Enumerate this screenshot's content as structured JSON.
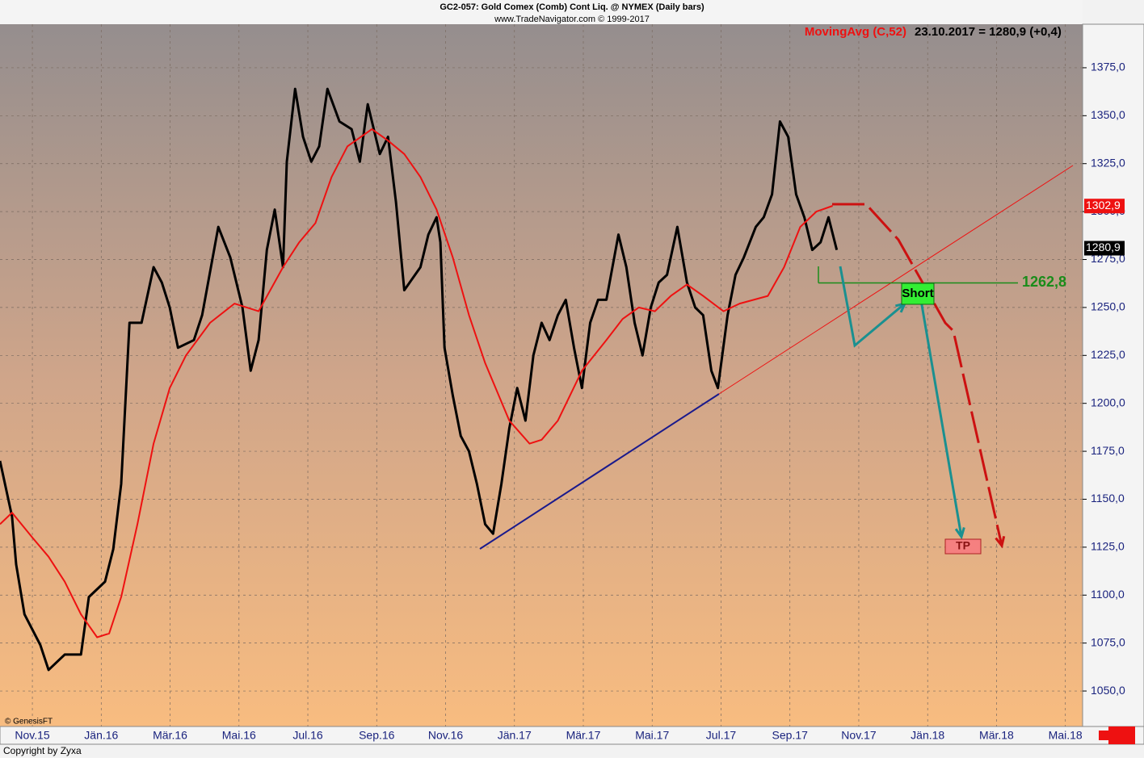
{
  "chart_data": {
    "type": "line",
    "title": "GC2-057:  Gold Comex (Comb) Cont Liq. @ NYMEX  (Daily bars)",
    "subtitle": "www.TradeNavigator.com © 1999-2017",
    "xlim": [
      -0.94,
      30.5
    ],
    "xticks": [
      {
        "value": 0,
        "label": "Nov.15"
      },
      {
        "value": 2,
        "label": "Jän.16"
      },
      {
        "value": 4,
        "label": "Mär.16"
      },
      {
        "value": 6,
        "label": "Mai.16"
      },
      {
        "value": 8,
        "label": "Jul.16"
      },
      {
        "value": 10,
        "label": "Sep.16"
      },
      {
        "value": 12,
        "label": "Nov.16"
      },
      {
        "value": 14,
        "label": "Jän.17"
      },
      {
        "value": 16,
        "label": "Mär.17"
      },
      {
        "value": 18,
        "label": "Mai.17"
      },
      {
        "value": 20,
        "label": "Jul.17"
      },
      {
        "value": 22,
        "label": "Sep.17"
      },
      {
        "value": 24,
        "label": "Nov.17"
      },
      {
        "value": 26,
        "label": "Jän.18"
      },
      {
        "value": 28,
        "label": "Mär.18"
      },
      {
        "value": 30,
        "label": "Mai.18"
      }
    ],
    "ylim": [
      1031.5,
      1397.7
    ],
    "yticks": [
      {
        "value": 1050,
        "label": "1050,0"
      },
      {
        "value": 1075,
        "label": "1075,0"
      },
      {
        "value": 1100,
        "label": "1100,0"
      },
      {
        "value": 1125,
        "label": "1125,0"
      },
      {
        "value": 1150,
        "label": "1150,0"
      },
      {
        "value": 1175,
        "label": "1175,0"
      },
      {
        "value": 1200,
        "label": "1200,0"
      },
      {
        "value": 1225,
        "label": "1225,0"
      },
      {
        "value": 1250,
        "label": "1250,0"
      },
      {
        "value": 1275,
        "label": "1275,0"
      },
      {
        "value": 1300,
        "label": "1300,0"
      },
      {
        "value": 1325,
        "label": "1325,0"
      },
      {
        "value": 1350,
        "label": "1350,0"
      },
      {
        "value": 1375,
        "label": "1375,0"
      }
    ],
    "series": [
      {
        "color": "#000000",
        "x": [
          -0.94,
          -0.59,
          -0.47,
          -0.23,
          0.23,
          0.47,
          0.94,
          1.41,
          1.64,
          2.11,
          2.35,
          2.58,
          2.82,
          3.17,
          3.52,
          3.76,
          3.99,
          4.23,
          4.69,
          4.93,
          5.4,
          5.75,
          6.1,
          6.34,
          6.57,
          6.81,
          7.04,
          7.28,
          7.39,
          7.63,
          7.86,
          8.1,
          8.33,
          8.57,
          8.92,
          9.27,
          9.51,
          9.74,
          10.09,
          10.33,
          10.56,
          10.8,
          11.27,
          11.5,
          11.74,
          11.85,
          11.97,
          12.21,
          12.44,
          12.68,
          12.91,
          13.15,
          13.38,
          13.62,
          13.85,
          14.08,
          14.32,
          14.55,
          14.79,
          15.02,
          15.26,
          15.49,
          15.73,
          15.96,
          16.2,
          16.43,
          16.67,
          17.02,
          17.25,
          17.49,
          17.72,
          17.96,
          18.19,
          18.43,
          18.73,
          19.01,
          19.25,
          19.48,
          19.72,
          19.91,
          20.19,
          20.42,
          20.66,
          21.01,
          21.24,
          21.48,
          21.71,
          21.95,
          22.18,
          22.42,
          22.65,
          22.89,
          23.12,
          23.36
        ],
        "values": [
          1170,
          1141,
          1116,
          1090,
          1074,
          1061,
          1069,
          1069,
          1099,
          1107,
          1124,
          1158,
          1242,
          1242,
          1271,
          1263,
          1250,
          1229,
          1233,
          1246,
          1292,
          1276,
          1250,
          1217,
          1233,
          1280,
          1301,
          1271,
          1326,
          1364,
          1339,
          1326,
          1334,
          1364,
          1347,
          1343,
          1326,
          1356,
          1330,
          1339,
          1305,
          1259,
          1271,
          1288,
          1297,
          1284,
          1229,
          1204,
          1183,
          1175,
          1158,
          1137,
          1132,
          1158,
          1187,
          1208,
          1191,
          1225,
          1242,
          1233,
          1246,
          1254,
          1229,
          1208,
          1242,
          1254,
          1254,
          1288,
          1271,
          1242,
          1225,
          1250,
          1263,
          1267,
          1292,
          1263,
          1250,
          1246,
          1217,
          1208,
          1246,
          1267,
          1276,
          1292,
          1297,
          1309,
          1347,
          1339,
          1309,
          1297,
          1280,
          1284,
          1297,
          1280
        ]
      },
      {
        "name": "MovingAvg (C,52)",
        "color": "#ee1111",
        "x": [
          -0.94,
          -0.59,
          0,
          0.47,
          0.94,
          1.41,
          1.88,
          2.23,
          2.58,
          3.05,
          3.52,
          3.99,
          4.46,
          5.16,
          5.87,
          6.57,
          7.28,
          7.75,
          8.22,
          8.69,
          9.15,
          9.86,
          10.33,
          10.8,
          11.27,
          11.74,
          12.21,
          12.68,
          13.15,
          13.85,
          14.44,
          14.79,
          15.26,
          15.96,
          16.67,
          17.14,
          17.61,
          18.08,
          18.54,
          19.01,
          19.48,
          20.07,
          20.54,
          21.36,
          21.83,
          22.3,
          22.77,
          23.24
        ],
        "values": [
          1137,
          1143,
          1130,
          1120,
          1107,
          1090,
          1078,
          1080,
          1099,
          1137,
          1179,
          1208,
          1225,
          1242,
          1252,
          1248,
          1271,
          1284,
          1294,
          1318,
          1334,
          1343,
          1337,
          1330,
          1318,
          1301,
          1276,
          1246,
          1221,
          1191,
          1179,
          1181,
          1191,
          1217,
          1233,
          1244,
          1250,
          1248,
          1256,
          1262,
          1256,
          1248,
          1252,
          1256,
          1271,
          1292,
          1300,
          1303
        ]
      }
    ],
    "annotations": {
      "last_value": "23.10.2017 = 1280,9 (+0,4)",
      "ma_tag": {
        "value": 1302.9,
        "label": "1302,9"
      },
      "price_tag": {
        "value": 1280.9,
        "label": "1280,9"
      },
      "level": {
        "value": 1262.8,
        "label": "1262,8"
      },
      "short": "Short",
      "tp": "TP",
      "credit": "© GenesisFT",
      "copyright": "Copyright by Zyxa"
    }
  }
}
